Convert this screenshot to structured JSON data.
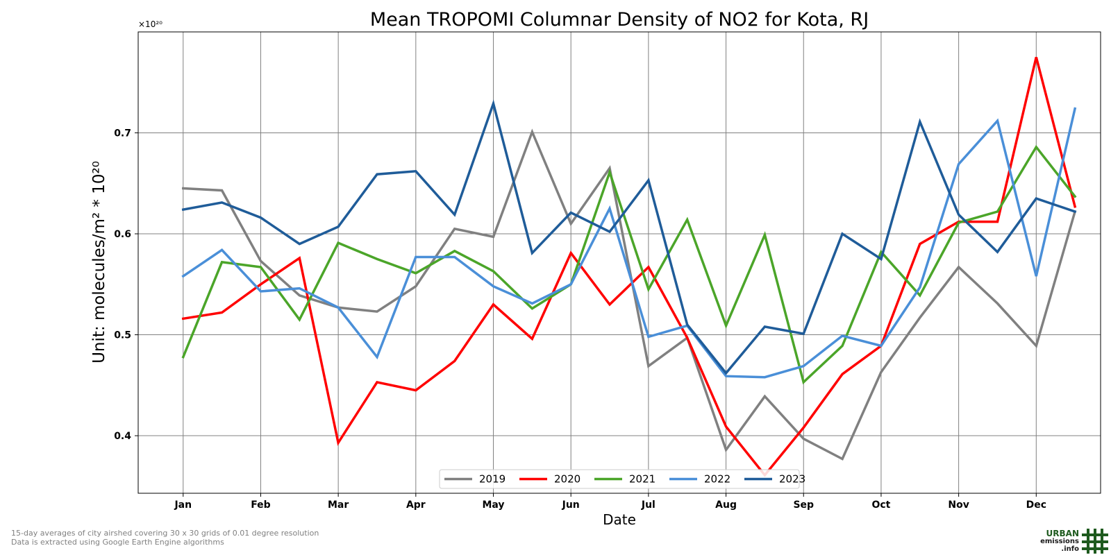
{
  "chart_data": {
    "type": "line",
    "title": "Mean TROPOMI Columnar Density of NO2 for Kota, RJ",
    "xlabel": "Date",
    "ylabel": "Unit: molecules/m² * 10²⁰",
    "multiplier_label": "×10²⁰",
    "ylim": [
      0.343,
      0.8
    ],
    "xlim": [
      -0.58,
      11.83
    ],
    "yticks": [
      0.4,
      0.5,
      0.6,
      0.7
    ],
    "ytick_labels": [
      "0.4",
      "0.5",
      "0.6",
      "0.7"
    ],
    "categories": [
      "Jan",
      "Feb",
      "Mar",
      "Apr",
      "May",
      "Jun",
      "Jul",
      "Aug",
      "Sep",
      "Oct",
      "Nov",
      "Dec"
    ],
    "x": [
      0,
      0.5,
      1,
      1.5,
      2,
      2.5,
      3,
      3.5,
      4,
      4.5,
      5,
      5.5,
      6,
      6.5,
      7,
      7.5,
      8,
      8.5,
      9,
      9.5,
      10,
      10.5,
      11,
      11.5
    ],
    "grid": true,
    "legend_position": "lower-center",
    "series": [
      {
        "name": "2019",
        "color": "#808080",
        "values": [
          0.645,
          0.643,
          0.573,
          0.539,
          0.527,
          0.523,
          0.548,
          0.605,
          0.597,
          0.701,
          0.61,
          0.665,
          0.469,
          0.497,
          0.386,
          0.439,
          0.397,
          0.377,
          0.463,
          0.517,
          0.567,
          0.531,
          0.489,
          0.622
        ]
      },
      {
        "name": "2020",
        "color": "#ff0000",
        "values": [
          0.516,
          0.522,
          0.55,
          0.576,
          0.393,
          0.453,
          0.445,
          0.474,
          0.53,
          0.496,
          0.581,
          0.53,
          0.567,
          0.497,
          0.409,
          0.361,
          0.408,
          0.461,
          0.489,
          0.59,
          0.612,
          0.612,
          0.775,
          0.627
        ]
      },
      {
        "name": "2021",
        "color": "#4ba529",
        "values": [
          0.478,
          0.572,
          0.567,
          0.515,
          0.591,
          0.575,
          0.561,
          0.583,
          0.563,
          0.526,
          0.55,
          0.661,
          0.545,
          0.614,
          0.509,
          0.599,
          0.453,
          0.489,
          0.582,
          0.539,
          0.611,
          0.622,
          0.686,
          0.637
        ]
      },
      {
        "name": "2022",
        "color": "#4a8fd8",
        "values": [
          0.558,
          0.584,
          0.543,
          0.546,
          0.527,
          0.478,
          0.577,
          0.577,
          0.548,
          0.531,
          0.55,
          0.625,
          0.498,
          0.509,
          0.459,
          0.458,
          0.469,
          0.499,
          0.489,
          0.547,
          0.669,
          0.712,
          0.558,
          0.724
        ]
      },
      {
        "name": "2023",
        "color": "#1f5c99",
        "values": [
          0.624,
          0.631,
          0.616,
          0.59,
          0.607,
          0.659,
          0.662,
          0.619,
          0.729,
          0.581,
          0.621,
          0.602,
          0.653,
          0.51,
          0.462,
          0.508,
          0.501,
          0.6,
          0.575,
          0.711,
          0.619,
          0.582,
          0.635,
          0.622
        ]
      }
    ]
  },
  "footnotes": [
    "15-day averages of city airshed covering 30 x 30 grids of 0.01 degree resolution",
    "Data is extracted using Google Earth Engine algorithms"
  ],
  "logo": {
    "line1": "URBAN",
    "line2": "emissions",
    "line3": ".info",
    "color": "#1e5a1e"
  }
}
